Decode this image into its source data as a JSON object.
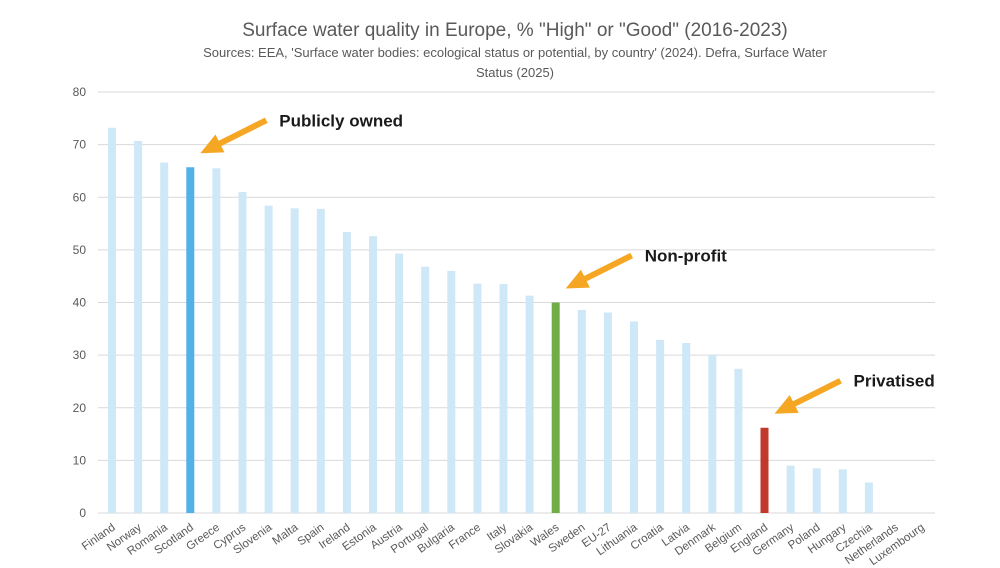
{
  "chart_data": {
    "type": "bar",
    "title": "Surface water quality in Europe, % \"High\" or \"Good\" (2016-2023)",
    "subtitle_line1": "Sources:  EEA, 'Surface water bodies: ecological status or potential, by country' (2024). Defra, Surface Water",
    "subtitle_line2": "Status (2025)",
    "ylim": [
      0,
      80
    ],
    "yticks": [
      0,
      10,
      20,
      30,
      40,
      50,
      60,
      70,
      80
    ],
    "grid": true,
    "categories": [
      "Finland",
      "Norway",
      "Romania",
      "Scotland",
      "Greece",
      "Cyprus",
      "Slovenia",
      "Malta",
      "Spain",
      "Ireland",
      "Estonia",
      "Austria",
      "Portugal",
      "Bulgaria",
      "France",
      "Italy",
      "Slovakia",
      "Wales",
      "Sweden",
      "EU-27",
      "Lithuania",
      "Croatia",
      "Latvia",
      "Denmark",
      "Belgium",
      "England",
      "Germany",
      "Poland",
      "Hungary",
      "Czechia",
      "Netherlands",
      "Luxembourg"
    ],
    "values": [
      73.2,
      70.7,
      66.6,
      65.7,
      65.5,
      61.0,
      58.4,
      57.9,
      57.8,
      53.4,
      52.6,
      49.3,
      46.8,
      46.0,
      43.6,
      43.5,
      41.3,
      40.0,
      38.6,
      38.1,
      36.4,
      32.9,
      32.3,
      30.0,
      27.4,
      16.2,
      9.0,
      8.5,
      8.3,
      5.8,
      0,
      0
    ],
    "colors": {
      "default": "#cfe8f7",
      "Scotland": "#52b1e8",
      "Wales": "#70ad47",
      "England": "#c0392b",
      "arrow": "#f5a623"
    },
    "annotations": [
      {
        "text": "Publicly owned",
        "target": "Scotland"
      },
      {
        "text": "Non-profit",
        "target": "Wales"
      },
      {
        "text": "Privatised",
        "target": "England"
      }
    ]
  }
}
